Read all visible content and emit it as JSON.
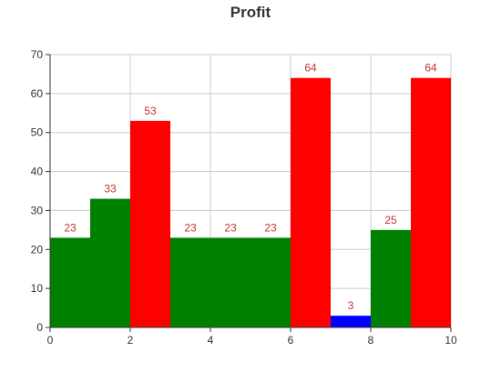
{
  "chart_data": {
    "type": "bar",
    "title": "Profit",
    "xlabel": "",
    "ylabel": "",
    "xlim": [
      0,
      10
    ],
    "ylim": [
      0,
      70
    ],
    "x_ticks": [
      0,
      2,
      4,
      6,
      8,
      10
    ],
    "y_ticks": [
      0,
      10,
      20,
      30,
      40,
      50,
      60,
      70
    ],
    "grid": true,
    "bars": [
      {
        "x0": 0,
        "x1": 1,
        "value": 23,
        "color": "#008000"
      },
      {
        "x0": 1,
        "x1": 2,
        "value": 33,
        "color": "#008000"
      },
      {
        "x0": 2,
        "x1": 3,
        "value": 53,
        "color": "#ff0000"
      },
      {
        "x0": 3,
        "x1": 4,
        "value": 23,
        "color": "#008000"
      },
      {
        "x0": 4,
        "x1": 5,
        "value": 23,
        "color": "#008000"
      },
      {
        "x0": 5,
        "x1": 6,
        "value": 23,
        "color": "#008000"
      },
      {
        "x0": 6,
        "x1": 7,
        "value": 64,
        "color": "#ff0000"
      },
      {
        "x0": 7,
        "x1": 8,
        "value": 3,
        "color": "#0000ff"
      },
      {
        "x0": 8,
        "x1": 9,
        "value": 25,
        "color": "#008000"
      },
      {
        "x0": 9,
        "x1": 10,
        "value": 64,
        "color": "#ff0000"
      }
    ],
    "colors": {
      "label": "#c23531",
      "grid": "#cccccc",
      "axis": "#333333"
    }
  }
}
